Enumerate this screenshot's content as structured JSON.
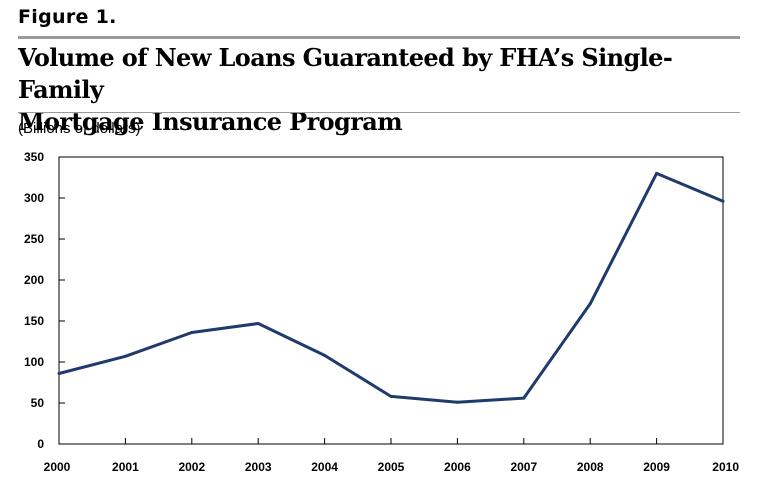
{
  "figure_label": "Figure 1.",
  "chart_data": {
    "type": "line",
    "title": "Volume of New Loans Guaranteed by FHA's Single-Family Mortgage Insurance Program",
    "title_lines": [
      "Volume of New Loans Guaranteed by FHA’s Single-Family",
      "Mortgage Insurance Program"
    ],
    "ylabel": "(Billions of dollars)",
    "xlabel": "",
    "x": [
      "2000",
      "2001",
      "2002",
      "2003",
      "2004",
      "2005",
      "2006",
      "2007",
      "2008",
      "2009",
      "2010"
    ],
    "values": [
      86,
      107,
      136,
      147,
      108,
      58,
      51,
      56,
      171,
      330,
      296
    ],
    "ylim": [
      0,
      350
    ],
    "yticks": [
      "0",
      "50",
      "100",
      "150",
      "200",
      "250",
      "300",
      "350"
    ],
    "grid": false,
    "line_color": "#1f3b6b"
  }
}
